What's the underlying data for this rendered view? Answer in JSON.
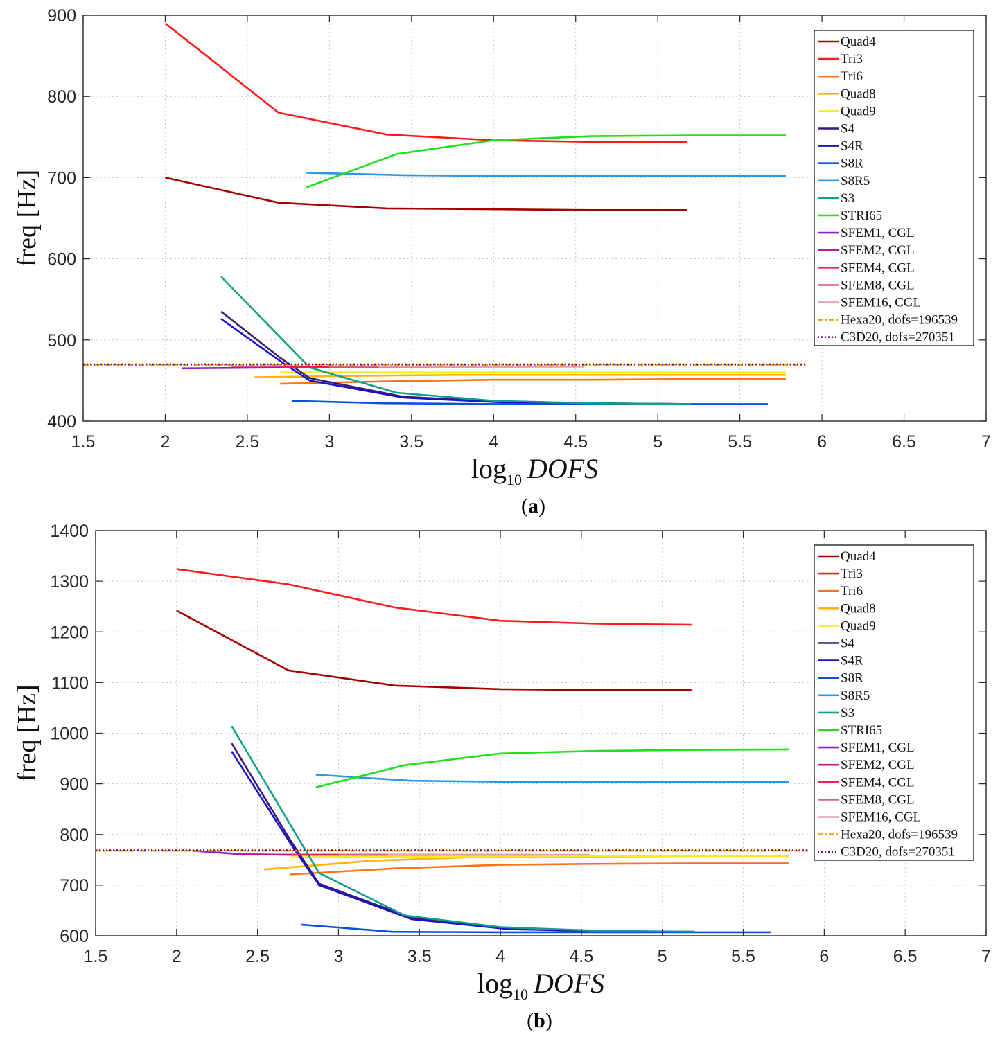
{
  "colors": {
    "Quad4": "#a50000",
    "Tri3": "#ff1a1a",
    "Tri6": "#ff7318",
    "Quad8": "#ffb400",
    "Quad9": "#f5ec1e",
    "S4": "#3a1a78",
    "S4R": "#1a14c8",
    "S8R": "#0a50e0",
    "S8R5": "#2a96ee",
    "S3": "#10a088",
    "STRI65": "#1ee01e",
    "SFEM1, CGL": "#8a1ed8",
    "SFEM2, CGL": "#c8148c",
    "SFEM4, CGL": "#ee2050",
    "SFEM8, CGL": "#e0608c",
    "SFEM16, CGL": "#e89ab8",
    "Hexa20, dofs=196539": "#e8a010",
    "C3D20, dofs=270351": "#6a0a6a"
  },
  "chart_data": [
    {
      "type": "line",
      "panel_label": "(a)",
      "xlabel": {
        "base": "log",
        "sub": "10",
        "var": "DOFS"
      },
      "ylabel": "freq [Hz]",
      "xlim": [
        1.5,
        7
      ],
      "ylim": [
        400,
        900
      ],
      "xticks": [
        "1.5",
        "2",
        "2.5",
        "3",
        "3.5",
        "4",
        "4.5",
        "5",
        "5.5",
        "6",
        "6.5",
        "7"
      ],
      "yticks": [
        "400",
        "500",
        "600",
        "700",
        "800",
        "900"
      ],
      "grid": true,
      "legend_position": "top-right",
      "series": [
        {
          "name": "Quad4",
          "x": [
            2.0,
            2.69,
            3.35,
            4.0,
            4.6,
            5.18
          ],
          "y": [
            700,
            669,
            662,
            661,
            660,
            660
          ]
        },
        {
          "name": "Tri3",
          "x": [
            2.0,
            2.69,
            3.35,
            4.0,
            4.6,
            5.18
          ],
          "y": [
            890,
            780,
            753,
            746,
            744,
            744
          ]
        },
        {
          "name": "Tri6",
          "x": [
            2.7,
            3.35,
            4.0,
            4.6,
            5.2,
            5.78
          ],
          "y": [
            446,
            449,
            451,
            451,
            452,
            452
          ]
        },
        {
          "name": "Quad8",
          "x": [
            2.54,
            3.2,
            3.8,
            4.5,
            5.1,
            5.78
          ],
          "y": [
            454,
            456,
            457,
            457,
            457,
            457
          ]
        },
        {
          "name": "Quad9",
          "x": [
            2.7,
            3.35,
            4.0,
            4.6,
            5.2,
            5.78
          ],
          "y": [
            460,
            460,
            460,
            460,
            460,
            460
          ]
        },
        {
          "name": "S4",
          "x": [
            2.34,
            2.7,
            2.88,
            3.45,
            4.05,
            4.6,
            5.2
          ],
          "y": [
            535,
            478,
            453,
            430,
            424,
            422,
            421
          ]
        },
        {
          "name": "S4R",
          "x": [
            2.34,
            2.7,
            2.88,
            3.45,
            4.05,
            4.6,
            5.2
          ],
          "y": [
            526,
            474,
            450,
            429,
            423,
            422,
            421
          ]
        },
        {
          "name": "S8R",
          "x": [
            2.77,
            3.33,
            4.0,
            4.6,
            5.2,
            5.67
          ],
          "y": [
            425,
            422,
            421,
            421,
            421,
            421
          ]
        },
        {
          "name": "S8R5",
          "x": [
            2.86,
            3.45,
            4.0,
            4.6,
            5.2,
            5.78
          ],
          "y": [
            706,
            703,
            702,
            702,
            702,
            702
          ]
        },
        {
          "name": "S3",
          "x": [
            2.34,
            2.88,
            3.41,
            4.0,
            4.6,
            5.2
          ],
          "y": [
            578,
            466,
            435,
            425,
            422,
            421
          ]
        },
        {
          "name": "STRI65",
          "x": [
            2.86,
            3.41,
            4.0,
            4.6,
            5.2,
            5.78
          ],
          "y": [
            688,
            729,
            746,
            751,
            752,
            752
          ]
        },
        {
          "name": "SFEM1, CGL",
          "x": [
            2.1,
            2.7,
            3.3
          ],
          "y": [
            465,
            466,
            466
          ]
        },
        {
          "name": "SFEM2, CGL",
          "x": [
            2.4,
            3.0,
            3.6
          ],
          "y": [
            466,
            466,
            466
          ]
        },
        {
          "name": "SFEM4, CGL",
          "x": [
            2.7,
            3.3,
            3.9
          ],
          "y": [
            467,
            467,
            467
          ]
        },
        {
          "name": "SFEM8, CGL",
          "x": [
            3.0,
            3.6,
            4.2
          ],
          "y": [
            467,
            467,
            467
          ]
        },
        {
          "name": "SFEM16, CGL",
          "x": [
            3.3,
            3.9,
            4.55
          ],
          "y": [
            467,
            467,
            467
          ]
        },
        {
          "name": "Hexa20, dofs=196539",
          "x": [
            1.5,
            5.9
          ],
          "y": [
            469,
            469
          ],
          "dash": "dashdot"
        },
        {
          "name": "C3D20, dofs=270351",
          "x": [
            1.5,
            5.9
          ],
          "y": [
            470,
            470
          ],
          "dash": "dotted"
        }
      ]
    },
    {
      "type": "line",
      "panel_label": "(b)",
      "xlabel": {
        "base": "log",
        "sub": "10",
        "var": "DOFS"
      },
      "ylabel": "freq [Hz]",
      "xlim": [
        1.5,
        7
      ],
      "ylim": [
        600,
        1400
      ],
      "xticks": [
        "1.5",
        "2",
        "2.5",
        "3",
        "3.5",
        "4",
        "4.5",
        "5",
        "5.5",
        "6",
        "6.5",
        "7"
      ],
      "yticks": [
        "600",
        "700",
        "800",
        "900",
        "1000",
        "1100",
        "1200",
        "1300",
        "1400"
      ],
      "grid": true,
      "legend_position": "top-right",
      "series": [
        {
          "name": "Quad4",
          "x": [
            2.0,
            2.69,
            3.35,
            4.0,
            4.6,
            5.18
          ],
          "y": [
            1242,
            1124,
            1094,
            1087,
            1085,
            1085
          ]
        },
        {
          "name": "Tri3",
          "x": [
            2.0,
            2.69,
            3.35,
            4.0,
            4.6,
            5.18
          ],
          "y": [
            1324,
            1294,
            1248,
            1222,
            1216,
            1214
          ]
        },
        {
          "name": "Tri6",
          "x": [
            2.7,
            3.35,
            4.0,
            4.6,
            5.2,
            5.78
          ],
          "y": [
            721,
            733,
            740,
            742,
            743,
            743
          ]
        },
        {
          "name": "Quad8",
          "x": [
            2.54,
            3.2,
            3.8,
            4.5,
            5.1,
            5.78
          ],
          "y": [
            731,
            748,
            755,
            756,
            757,
            757
          ]
        },
        {
          "name": "Quad9",
          "x": [
            2.7,
            3.35,
            4.0,
            4.6,
            5.2,
            5.78
          ],
          "y": [
            755,
            756,
            757,
            757,
            757,
            757
          ]
        },
        {
          "name": "S4",
          "x": [
            2.34,
            2.7,
            2.88,
            3.45,
            4.05,
            4.6,
            5.2
          ],
          "y": [
            980,
            790,
            703,
            636,
            614,
            609,
            608
          ]
        },
        {
          "name": "S4R",
          "x": [
            2.34,
            2.7,
            2.88,
            3.45,
            4.05,
            4.6,
            5.2
          ],
          "y": [
            964,
            784,
            700,
            633,
            613,
            609,
            608
          ]
        },
        {
          "name": "S8R",
          "x": [
            2.77,
            3.33,
            4.0,
            4.6,
            5.2,
            5.67
          ],
          "y": [
            622,
            608,
            607,
            607,
            607,
            607
          ]
        },
        {
          "name": "S8R5",
          "x": [
            2.86,
            3.45,
            4.0,
            4.6,
            5.2,
            5.78
          ],
          "y": [
            918,
            906,
            904,
            904,
            904,
            904
          ]
        },
        {
          "name": "S3",
          "x": [
            2.34,
            2.88,
            3.41,
            4.0,
            4.6,
            5.2
          ],
          "y": [
            1014,
            724,
            640,
            617,
            610,
            608
          ]
        },
        {
          "name": "STRI65",
          "x": [
            2.86,
            3.41,
            4.0,
            4.6,
            5.2,
            5.78
          ],
          "y": [
            893,
            937,
            960,
            965,
            967,
            968
          ]
        },
        {
          "name": "SFEM1, CGL",
          "x": [
            2.1,
            2.4,
            2.7,
            3.0
          ],
          "y": [
            768,
            761,
            760,
            760
          ]
        },
        {
          "name": "SFEM2, CGL",
          "x": [
            2.4,
            2.7,
            3.0,
            3.3
          ],
          "y": [
            761,
            760,
            760,
            760
          ]
        },
        {
          "name": "SFEM4, CGL",
          "x": [
            2.7,
            3.0,
            3.3,
            3.6
          ],
          "y": [
            760,
            760,
            760,
            760
          ]
        },
        {
          "name": "SFEM8, CGL",
          "x": [
            3.0,
            3.4,
            3.8,
            4.2
          ],
          "y": [
            760,
            760,
            760,
            760
          ]
        },
        {
          "name": "SFEM16, CGL",
          "x": [
            3.3,
            3.8,
            4.2,
            4.55
          ],
          "y": [
            760,
            760,
            760,
            760
          ]
        },
        {
          "name": "Hexa20, dofs=196539",
          "x": [
            1.5,
            5.9
          ],
          "y": [
            768,
            768
          ],
          "dash": "dashdot"
        },
        {
          "name": "C3D20, dofs=270351",
          "x": [
            1.5,
            5.9
          ],
          "y": [
            769,
            769
          ],
          "dash": "dotted"
        }
      ]
    }
  ]
}
